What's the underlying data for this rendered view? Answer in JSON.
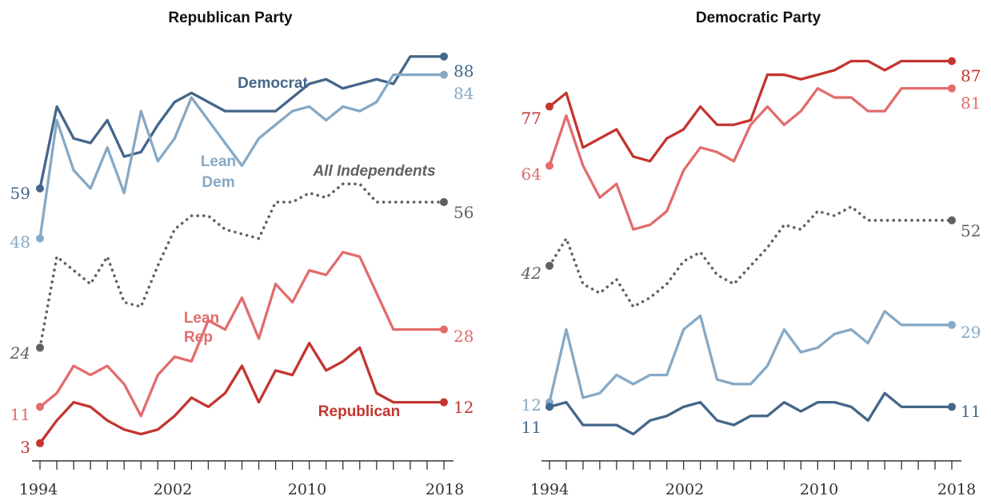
{
  "colors": {
    "democrat": "#44668a",
    "lean_dem": "#86a9c5",
    "independents": "#616161",
    "lean_rep": "#e26c6c",
    "republican": "#c33530"
  },
  "chart_data": [
    {
      "type": "line",
      "title": "Republican Party",
      "xlabel": "",
      "ylabel": "",
      "x": [
        1994,
        1995,
        1996,
        1997,
        1998,
        1999,
        2000,
        2001,
        2002,
        2003,
        2004,
        2005,
        2006,
        2007,
        2008,
        2009,
        2010,
        2011,
        2012,
        2013,
        2014,
        2015,
        2016,
        2017,
        2018
      ],
      "xticks": [
        1994,
        2002,
        2010,
        2018
      ],
      "ylim": [
        0,
        92
      ],
      "grid": false,
      "legend": "inline labels",
      "series": [
        {
          "name": "Democrat",
          "key": "democrat",
          "dotted": false,
          "start_label": "59",
          "end_label": "88",
          "values": [
            59,
            77,
            70,
            69,
            74,
            66,
            67,
            73,
            78,
            80,
            78,
            76,
            76,
            76,
            76,
            79,
            82,
            83,
            81,
            82,
            83,
            82,
            88,
            88,
            88
          ]
        },
        {
          "name": "Lean Dem",
          "key": "lean_dem",
          "dotted": false,
          "start_label": "48",
          "end_label": "84",
          "values": [
            48,
            74,
            63,
            59,
            68,
            58,
            76,
            65,
            70,
            79,
            74,
            69,
            64,
            70,
            73,
            76,
            77,
            74,
            77,
            76,
            78,
            84,
            84,
            84,
            84
          ]
        },
        {
          "name": "All Independents",
          "key": "independents",
          "dotted": true,
          "start_label": "24",
          "end_label": "56",
          "values": [
            24,
            44,
            41,
            38,
            44,
            34,
            33,
            42,
            50,
            53,
            53,
            50,
            49,
            48,
            56,
            56,
            58,
            57,
            60,
            60,
            56,
            56,
            56,
            56,
            56
          ]
        },
        {
          "name": "Lean Rep",
          "key": "lean_rep",
          "dotted": false,
          "start_label": "11",
          "end_label": "28",
          "values": [
            11,
            14,
            20,
            18,
            20,
            16,
            9,
            18,
            22,
            21,
            30,
            28,
            35,
            26,
            38,
            34,
            41,
            40,
            45,
            44,
            36,
            28,
            28,
            28,
            28
          ]
        },
        {
          "name": "Republican",
          "key": "republican",
          "dotted": false,
          "start_label": "3",
          "end_label": "12",
          "values": [
            3,
            8,
            12,
            11,
            8,
            6,
            5,
            6,
            9,
            13,
            11,
            14,
            20,
            12,
            19,
            18,
            25,
            19,
            21,
            24,
            14,
            12,
            12,
            12,
            12
          ]
        }
      ],
      "annotations": [
        {
          "text": "Democrat",
          "series": "democrat",
          "italic": false
        },
        {
          "text": "Lean",
          "series": "lean_dem",
          "italic": false
        },
        {
          "text": "Dem",
          "series": "lean_dem",
          "italic": false
        },
        {
          "text": "All Independents",
          "series": "independents",
          "italic": true
        },
        {
          "text": "Lean",
          "series": "lean_rep",
          "italic": false
        },
        {
          "text": "Rep",
          "series": "lean_rep",
          "italic": false
        },
        {
          "text": "Republican",
          "series": "republican",
          "italic": false
        }
      ]
    },
    {
      "type": "line",
      "title": "Democratic Party",
      "xlabel": "",
      "ylabel": "",
      "x": [
        1994,
        1995,
        1996,
        1997,
        1998,
        1999,
        2000,
        2001,
        2002,
        2003,
        2004,
        2005,
        2006,
        2007,
        2008,
        2009,
        2010,
        2011,
        2012,
        2013,
        2014,
        2015,
        2016,
        2017,
        2018
      ],
      "xticks": [
        1994,
        2002,
        2010,
        2018
      ],
      "ylim": [
        0,
        92
      ],
      "grid": false,
      "legend": "none",
      "series": [
        {
          "name": "",
          "key": "republican",
          "dotted": false,
          "start_label": "77",
          "end_label": "87",
          "values": [
            77,
            80,
            68,
            70,
            72,
            66,
            65,
            70,
            72,
            77,
            73,
            73,
            74,
            84,
            84,
            83,
            84,
            85,
            87,
            87,
            85,
            87,
            87,
            87,
            87
          ]
        },
        {
          "name": "",
          "key": "lean_rep",
          "dotted": false,
          "start_label": "64",
          "end_label": "81",
          "values": [
            64,
            75,
            64,
            57,
            60,
            50,
            51,
            54,
            63,
            68,
            67,
            65,
            73,
            77,
            73,
            76,
            81,
            79,
            79,
            76,
            76,
            81,
            81,
            81,
            81
          ]
        },
        {
          "name": "",
          "key": "independents",
          "dotted": true,
          "start_label": "42",
          "end_label": "52",
          "values": [
            42,
            48,
            38,
            36,
            39,
            33,
            35,
            38,
            43,
            45,
            40,
            38,
            42,
            46,
            51,
            50,
            54,
            53,
            55,
            52,
            52,
            52,
            52,
            52,
            52
          ]
        },
        {
          "name": "",
          "key": "lean_dem",
          "dotted": false,
          "start_label": "12",
          "end_label": "29",
          "values": [
            12,
            28,
            13,
            14,
            18,
            16,
            18,
            18,
            28,
            31,
            17,
            16,
            16,
            20,
            28,
            23,
            24,
            27,
            28,
            25,
            32,
            29,
            29,
            29,
            29
          ]
        },
        {
          "name": "",
          "key": "democrat",
          "dotted": false,
          "start_label": "11",
          "end_label": "11",
          "values": [
            11,
            12,
            7,
            7,
            7,
            5,
            8,
            9,
            11,
            12,
            8,
            7,
            9,
            9,
            12,
            10,
            12,
            12,
            11,
            8,
            14,
            11,
            11,
            11,
            11
          ]
        }
      ],
      "annotations": []
    }
  ]
}
